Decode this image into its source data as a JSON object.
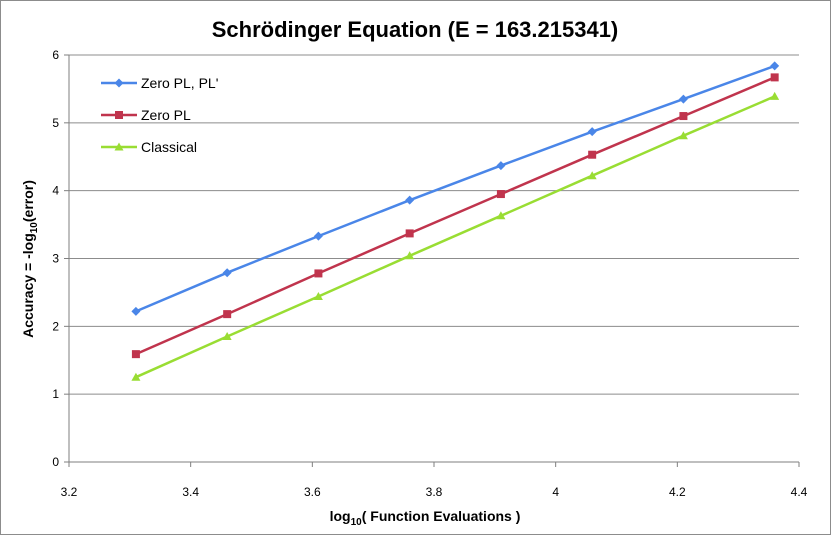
{
  "chart_data": {
    "type": "line",
    "title": "Schrödinger Equation (E = 163.215341)",
    "xlabel": {
      "prefix": "log",
      "sub": "10",
      "suffix": "( Function Evaluations )"
    },
    "ylabel": {
      "prefix": "Accuracy = -log",
      "sub": "10",
      "suffix": "(error)"
    },
    "xlim": [
      3.2,
      4.4
    ],
    "ylim": [
      0,
      6
    ],
    "xticks": [
      3.2,
      3.4,
      3.6,
      3.8,
      4,
      4.2,
      4.4
    ],
    "xtick_labels": [
      "3.2",
      "3.4",
      "3.6",
      "3.8",
      "4",
      "4.2",
      "4.4"
    ],
    "yticks": [
      0,
      1,
      2,
      3,
      4,
      5,
      6
    ],
    "ytick_labels": [
      "0",
      "1",
      "2",
      "3",
      "4",
      "5",
      "6"
    ],
    "grid": {
      "horizontal": true,
      "vertical": false
    },
    "legend_position": "top-left",
    "x": [
      3.31,
      3.46,
      3.61,
      3.76,
      3.91,
      4.06,
      4.21,
      4.36
    ],
    "series": [
      {
        "name": "Zero PL, PL'",
        "marker": "diamond",
        "color": "#4a86e8",
        "values": [
          2.22,
          2.79,
          3.33,
          3.86,
          4.37,
          4.87,
          5.35,
          5.84
        ]
      },
      {
        "name": "Zero PL",
        "marker": "square",
        "color": "#c0344d",
        "values": [
          1.59,
          2.18,
          2.78,
          3.37,
          3.95,
          4.53,
          5.1,
          5.67
        ]
      },
      {
        "name": "Classical",
        "marker": "triangle",
        "color": "#99dd33",
        "values": [
          1.25,
          1.85,
          2.44,
          3.04,
          3.63,
          4.22,
          4.81,
          5.39
        ]
      }
    ]
  }
}
